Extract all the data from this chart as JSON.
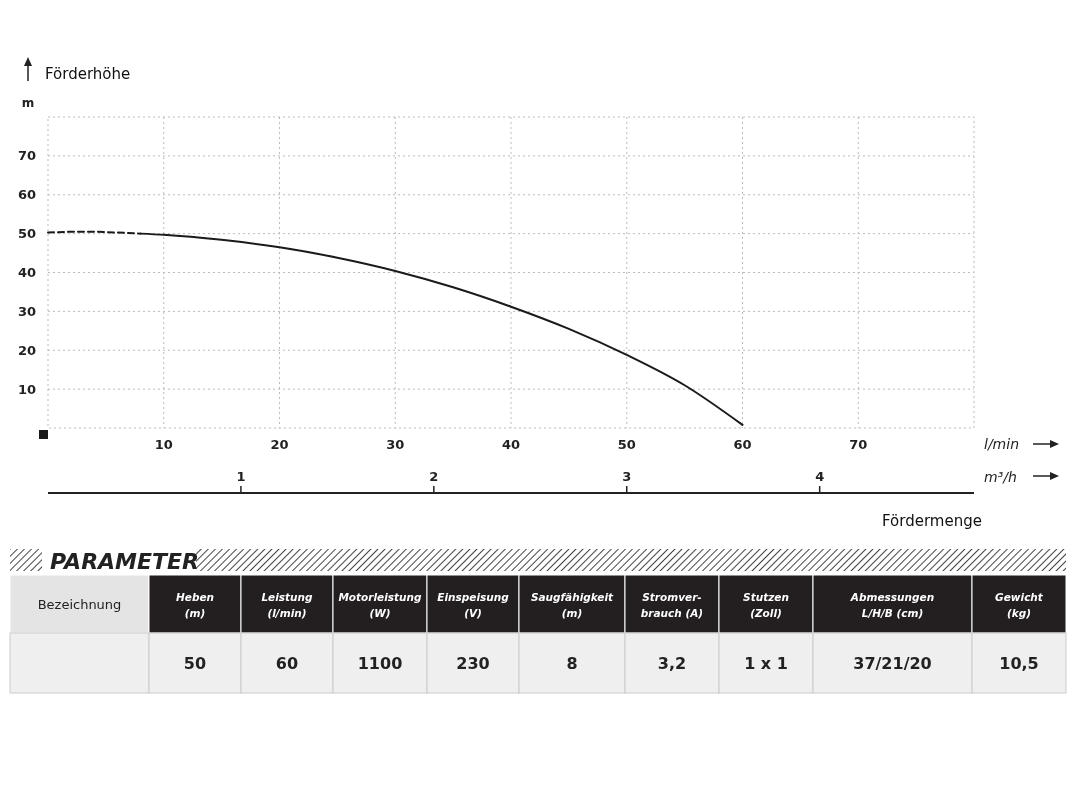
{
  "chart_data": [
    {
      "type": "line",
      "ylabel": "Förderhöhe",
      "xlabel": "Fördermenge",
      "x2label": "m³/h",
      "annotations": [
        "m",
        "l/min"
      ],
      "xlim": [
        0,
        80
      ],
      "xticks": [
        10,
        20,
        30,
        40,
        50,
        60,
        70
      ],
      "ylim": [
        0,
        80
      ],
      "yticks": [
        10,
        20,
        30,
        40,
        50,
        60,
        70
      ],
      "x2lim": [
        0,
        4.8
      ],
      "x2ticks": [
        1,
        2,
        3,
        4
      ],
      "grid": true,
      "series": [
        {
          "color": "#1a1a1a",
          "line_style": "dashed",
          "x": [
            0,
            3,
            8
          ],
          "values": [
            50.3,
            50.5,
            50
          ]
        },
        {
          "color": "#1a1a1a",
          "line_style": "solid",
          "x": [
            8,
            10,
            15,
            20,
            25,
            30,
            35,
            40,
            45,
            50,
            55,
            60
          ],
          "values": [
            50,
            49.7,
            48.4,
            46.5,
            43.8,
            40.4,
            36.2,
            31.2,
            25.5,
            18.8,
            11,
            0.8
          ]
        }
      ]
    },
    {
      "type": "other",
      "title": "PARAMETER",
      "annotations": [
        "Bezeichnung",
        "Heben\n(m)",
        "Leistung\n(l/min)",
        "Motorleistung\n(W)",
        "Einspeisung\n(V)",
        "Saugfähigkeit\n(m)",
        "Stromver-\nbrauch (A)",
        "Stutzen\n(Zoll)",
        "Abmessungen\nL/H/B (cm)",
        "Gewicht\n(kg)",
        "50",
        "60",
        "1100",
        "230",
        "8",
        "3,2",
        "1 x 1",
        "37/21/20",
        "10,5"
      ]
    }
  ]
}
